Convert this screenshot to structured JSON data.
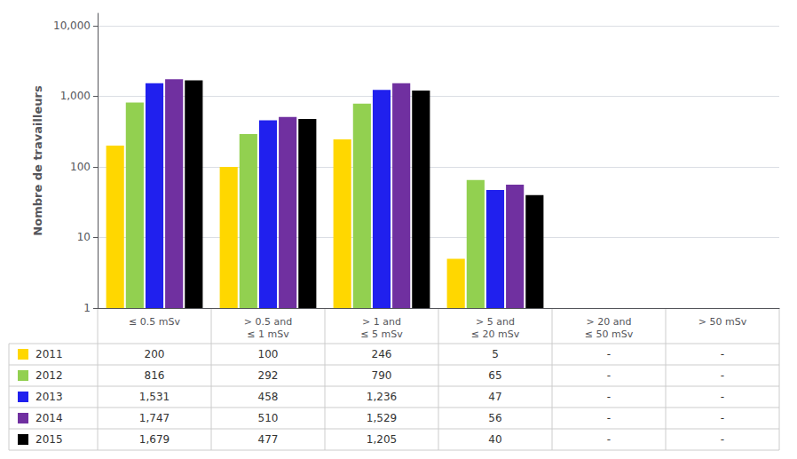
{
  "chart_data": {
    "type": "bar",
    "categories": [
      "≤ 0.5 mSv",
      "> 0.5 and\n≤ 1 mSv",
      "> 1 and\n≤ 5 mSv",
      "> 5 and\n≤ 20 mSv",
      "> 20 and\n≤ 50 mSv",
      "> 50 mSv"
    ],
    "series": [
      {
        "name": "2011",
        "color": "#FFD700",
        "values": [
          200,
          100,
          246,
          5,
          null,
          null
        ],
        "value_labels": [
          "200",
          "100",
          "246",
          "5",
          "-",
          "-"
        ]
      },
      {
        "name": "2012",
        "color": "#92D050",
        "values": [
          816,
          292,
          790,
          65,
          null,
          null
        ],
        "value_labels": [
          "816",
          "292",
          "790",
          "65",
          "-",
          "-"
        ]
      },
      {
        "name": "2013",
        "color": "#2020EE",
        "values": [
          1531,
          458,
          1236,
          47,
          null,
          null
        ],
        "value_labels": [
          "1,531",
          "458",
          "1,236",
          "47",
          "-",
          "-"
        ]
      },
      {
        "name": "2014",
        "color": "#7030A0",
        "values": [
          1747,
          510,
          1529,
          56,
          null,
          null
        ],
        "value_labels": [
          "1,747",
          "510",
          "1,529",
          "56",
          "-",
          "-"
        ]
      },
      {
        "name": "2015",
        "color": "#000000",
        "values": [
          1679,
          477,
          1205,
          40,
          null,
          null
        ],
        "value_labels": [
          "1,679",
          "477",
          "1,205",
          "40",
          "-",
          "-"
        ]
      }
    ],
    "ylabel": "Nombre de travailleurs",
    "log": "y",
    "ylim": [
      1,
      15000
    ],
    "yticks": [
      1,
      10,
      100,
      {
        "value": 1000,
        "label": "1,000"
      },
      {
        "value": 10000,
        "label": "10,000"
      }
    ],
    "grid": true
  }
}
